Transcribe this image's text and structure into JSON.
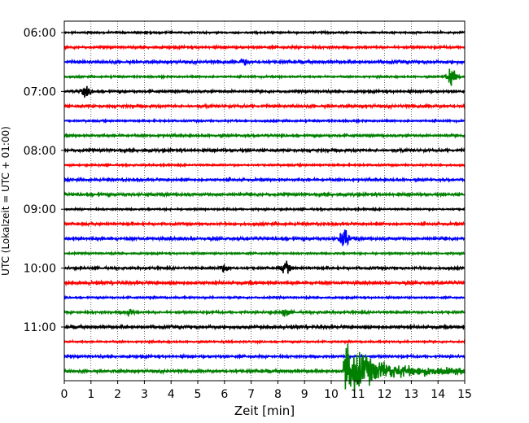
{
  "chart_data": {
    "type": "line",
    "chart_kind": "helicorder",
    "xlabel": "Zeit  [min]",
    "ylabel": "UTC (Lokalzeit = UTC + 01:00)",
    "xlim": [
      0,
      15
    ],
    "x_ticks": [
      "0",
      "1",
      "2",
      "3",
      "4",
      "5",
      "6",
      "7",
      "8",
      "9",
      "10",
      "11",
      "12",
      "13",
      "14",
      "15"
    ],
    "y_ticks": [
      "06:00",
      "07:00",
      "08:00",
      "09:00",
      "10:00",
      "11:00"
    ],
    "trace_interval_minutes": 15,
    "trace_start_times": [
      "06:00",
      "06:15",
      "06:30",
      "06:45",
      "07:00",
      "07:15",
      "07:30",
      "07:45",
      "08:00",
      "08:15",
      "08:30",
      "08:45",
      "09:00",
      "09:15",
      "09:30",
      "09:45",
      "10:00",
      "10:15",
      "10:30",
      "10:45",
      "11:00",
      "11:15",
      "11:30",
      "11:45"
    ],
    "trace_colors": [
      "#000000",
      "#ff0000",
      "#0000ff",
      "#008000"
    ],
    "grid": "vertical dotted lines at each minute",
    "legend": "none",
    "events": [
      {
        "trace_start": "06:30",
        "minute": 6.7,
        "amplitude": 0.25
      },
      {
        "trace_start": "06:45",
        "minute": 14.5,
        "amplitude": 0.75
      },
      {
        "trace_start": "07:00",
        "minute": 0.8,
        "amplitude": 0.45
      },
      {
        "trace_start": "09:30",
        "minute": 10.5,
        "amplitude": 0.9
      },
      {
        "trace_start": "10:00",
        "minute": 8.3,
        "amplitude": 0.5
      },
      {
        "trace_start": "10:00",
        "minute": 6.0,
        "amplitude": 0.3
      },
      {
        "trace_start": "10:45",
        "minute": 2.4,
        "amplitude": 0.3
      },
      {
        "trace_start": "10:45",
        "minute": 8.3,
        "amplitude": 0.35
      },
      {
        "trace_start": "11:45",
        "minute": 10.5,
        "amplitude": 2.2
      }
    ]
  }
}
